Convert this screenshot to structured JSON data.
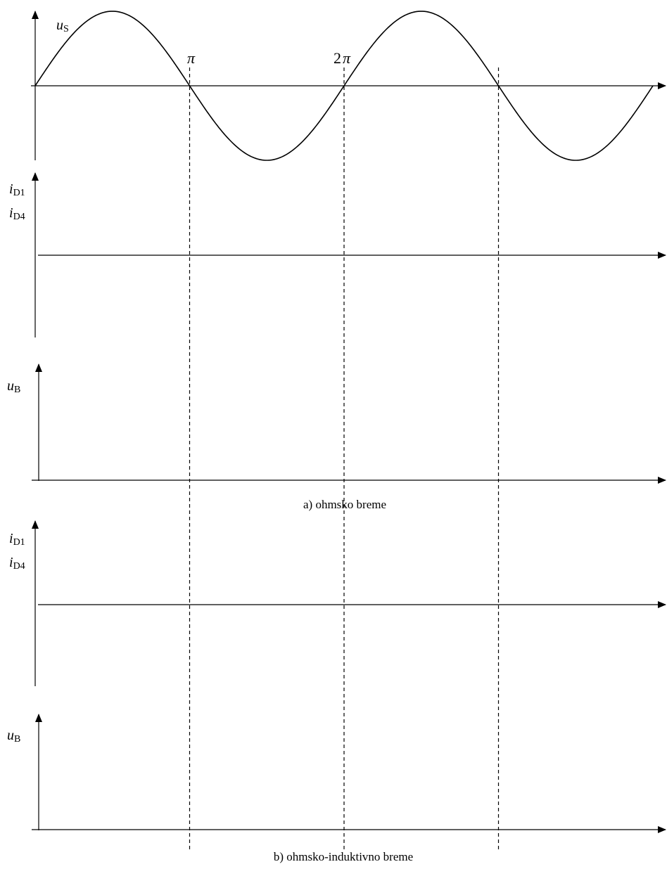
{
  "panels": {
    "us": {
      "var": "u",
      "sub": "S"
    },
    "id_a": {
      "var1": "i",
      "sub1": "D1",
      "var2": "i",
      "sub2": "D4"
    },
    "ub_a": {
      "var": "u",
      "sub": "B"
    },
    "id_b": {
      "var1": "i",
      "sub1": "D1",
      "var2": "i",
      "sub2": "D4"
    },
    "ub_b": {
      "var": "u",
      "sub": "B"
    }
  },
  "markers": {
    "pi": "π",
    "two_pi_num": "2",
    "two_pi_sym": "π"
  },
  "captions": {
    "a": "a) ohmsko breme",
    "b": "b) ohmsko-induktivno breme"
  },
  "chart_data": {
    "type": "line",
    "series": [
      {
        "name": "u_S",
        "function": "sin",
        "x_start_rad": 0,
        "x_end_rad": 12.566
      }
    ],
    "guides_rad": [
      3.1416,
      6.2832,
      9.4248
    ]
  }
}
